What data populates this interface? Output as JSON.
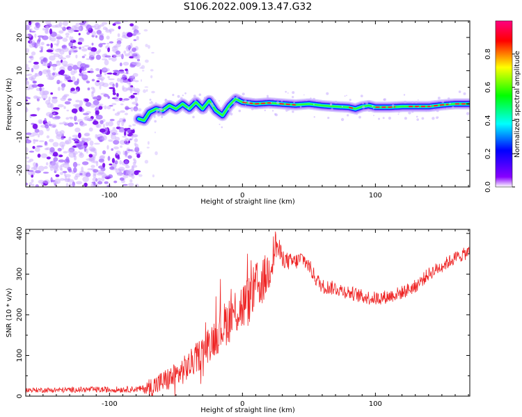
{
  "title": "S106.2022.009.13.47.G32",
  "chart_data": [
    {
      "type": "heatmap",
      "xlabel": "Height of straight line (km)",
      "ylabel": "Frequency (Hz)",
      "xlim": [
        -163,
        171
      ],
      "ylim": [
        -25,
        25
      ],
      "x_ticks": [
        -100,
        0,
        100
      ],
      "y_ticks": [
        -20,
        -10,
        0,
        10,
        20
      ],
      "colorbar": {
        "label": "Normalized spectral amplitude",
        "range": [
          0.0,
          1.0
        ],
        "ticks": [
          "0.0",
          "0.2",
          "0.4",
          "0.6",
          "0.8"
        ],
        "colors": [
          "#ffffff",
          "#8800ff",
          "#0000ff",
          "#00ffff",
          "#00ff00",
          "#ffff00",
          "#ff0000",
          "#ff0080"
        ]
      },
      "noise_region_x": [
        -163,
        -78
      ],
      "ridge": {
        "x": [
          -78,
          -74,
          -70,
          -65,
          -60,
          -55,
          -50,
          -45,
          -40,
          -35,
          -30,
          -25,
          -20,
          -15,
          -10,
          -5,
          0,
          10,
          20,
          30,
          40,
          50,
          60,
          70,
          80,
          85,
          90,
          95,
          100,
          110,
          120,
          130,
          140,
          150,
          160,
          171
        ],
        "y": [
          -4.5,
          -5,
          -2.5,
          -1.5,
          -2,
          -0.5,
          -1.5,
          0,
          -1.5,
          0.5,
          -1.5,
          1,
          -2,
          -3.5,
          -0.5,
          1.5,
          0.5,
          0,
          0.3,
          0,
          -0.3,
          0,
          -0.5,
          -0.8,
          -1,
          -1.5,
          -0.8,
          -0.5,
          -1,
          -1,
          -0.8,
          -0.8,
          -0.8,
          -0.3,
          0,
          0
        ]
      }
    },
    {
      "type": "line",
      "xlabel": "Height of straight line (km)",
      "ylabel": "SNR (10 * v/v)",
      "xlim": [
        -163,
        171
      ],
      "ylim": [
        0,
        410
      ],
      "x_ticks": [
        -100,
        0,
        100
      ],
      "y_ticks": [
        0,
        100,
        200,
        300,
        400
      ],
      "line_color": "#ee2222",
      "trend": {
        "x": [
          -163,
          -140,
          -120,
          -100,
          -80,
          -70,
          -60,
          -50,
          -40,
          -30,
          -20,
          -10,
          -5,
          0,
          5,
          10,
          15,
          20,
          25,
          30,
          35,
          40,
          45,
          50,
          55,
          60,
          70,
          80,
          90,
          100,
          110,
          120,
          130,
          140,
          150,
          160,
          171
        ],
        "y": [
          15,
          15,
          16,
          16,
          17,
          20,
          35,
          50,
          75,
          110,
          150,
          190,
          210,
          220,
          235,
          270,
          280,
          310,
          375,
          340,
          330,
          330,
          340,
          320,
          290,
          270,
          265,
          255,
          245,
          240,
          245,
          255,
          270,
          300,
          320,
          340,
          355
        ]
      },
      "noise_amplitude": {
        "x": [
          -163,
          -75,
          -70,
          -30,
          -10,
          0,
          20,
          30,
          60,
          171
        ],
        "a": [
          6,
          8,
          25,
          40,
          60,
          65,
          55,
          22,
          18,
          16
        ]
      }
    }
  ]
}
